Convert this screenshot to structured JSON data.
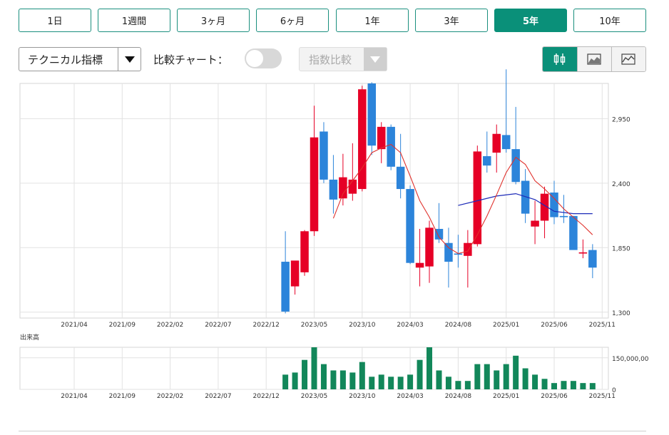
{
  "period_buttons": [
    {
      "label": "1日",
      "active": false
    },
    {
      "label": "1週間",
      "active": false
    },
    {
      "label": "3ヶ月",
      "active": false
    },
    {
      "label": "6ヶ月",
      "active": false
    },
    {
      "label": "1年",
      "active": false
    },
    {
      "label": "3年",
      "active": false
    },
    {
      "label": "5年",
      "active": true
    },
    {
      "label": "10年",
      "active": false
    }
  ],
  "toolbar": {
    "technical_label": "テクニカル指標",
    "compare_label": "比較チャート：",
    "compare_enabled": false,
    "index_compare_label": "指数比較"
  },
  "chart_types": [
    {
      "icon": "candlestick-icon",
      "active": true
    },
    {
      "icon": "area-chart-icon",
      "active": false
    },
    {
      "icon": "line-chart-icon",
      "active": false
    }
  ],
  "colors": {
    "accent": "#0a9079",
    "up_candle": "#e60026",
    "down_candle": "#2c84da",
    "ma_short": "#e0322d",
    "ma_long": "#1c2ab8",
    "volume": "#12875a"
  },
  "volume_label": "出来高",
  "chart_data": {
    "type": "candlestick",
    "interval": "monthly",
    "x_tick_labels": [
      "2021/04",
      "2021/09",
      "2022/02",
      "2022/07",
      "2022/12",
      "2023/05",
      "2023/10",
      "2024/03",
      "2024/08",
      "2025/01",
      "2025/06",
      "2025/11"
    ],
    "y_tick_labels": [
      "2,950",
      "2,400",
      "1,850",
      "1,300"
    ],
    "ylim": [
      1250,
      3250
    ],
    "grid": true,
    "candles": [
      {
        "month": "2023/02",
        "open": 1730,
        "high": 1990,
        "low": 1290,
        "close": 1305
      },
      {
        "month": "2023/03",
        "open": 1520,
        "high": 1730,
        "low": 1450,
        "close": 1740
      },
      {
        "month": "2023/04",
        "open": 1640,
        "high": 2000,
        "low": 1610,
        "close": 1990
      },
      {
        "month": "2023/05",
        "open": 1990,
        "high": 3060,
        "low": 1950,
        "close": 2790
      },
      {
        "month": "2023/06",
        "open": 2840,
        "high": 2920,
        "low": 2400,
        "close": 2430
      },
      {
        "month": "2023/07",
        "open": 2430,
        "high": 2640,
        "low": 2140,
        "close": 2260
      },
      {
        "month": "2023/08",
        "open": 2270,
        "high": 2650,
        "low": 2210,
        "close": 2450
      },
      {
        "month": "2023/09",
        "open": 2310,
        "high": 2740,
        "low": 2250,
        "close": 2430
      },
      {
        "month": "2023/10",
        "open": 2350,
        "high": 3230,
        "low": 2330,
        "close": 3200
      },
      {
        "month": "2023/11",
        "open": 3250,
        "high": 3260,
        "low": 2640,
        "close": 2720
      },
      {
        "month": "2023/12",
        "open": 2690,
        "high": 2920,
        "low": 2570,
        "close": 2880
      },
      {
        "month": "2024/01",
        "open": 2880,
        "high": 2900,
        "low": 2510,
        "close": 2540
      },
      {
        "month": "2024/02",
        "open": 2540,
        "high": 2820,
        "low": 2270,
        "close": 2350
      },
      {
        "month": "2024/03",
        "open": 2350,
        "high": 2380,
        "low": 1710,
        "close": 1720
      },
      {
        "month": "2024/04",
        "open": 1680,
        "high": 2010,
        "low": 1520,
        "close": 1720
      },
      {
        "month": "2024/05",
        "open": 1690,
        "high": 2080,
        "low": 1550,
        "close": 2020
      },
      {
        "month": "2024/06",
        "open": 2010,
        "high": 2230,
        "low": 1890,
        "close": 1920
      },
      {
        "month": "2024/07",
        "open": 1890,
        "high": 2020,
        "low": 1510,
        "close": 1730
      },
      {
        "month": "2024/08",
        "open": 1800,
        "high": 1960,
        "low": 1680,
        "close": 1790
      },
      {
        "month": "2024/09",
        "open": 1780,
        "high": 2000,
        "low": 1510,
        "close": 1890
      },
      {
        "month": "2024/10",
        "open": 1880,
        "high": 2720,
        "low": 1860,
        "close": 2670
      },
      {
        "month": "2024/11",
        "open": 2630,
        "high": 2840,
        "low": 2490,
        "close": 2550
      },
      {
        "month": "2024/12",
        "open": 2660,
        "high": 2900,
        "low": 2490,
        "close": 2820
      },
      {
        "month": "2025/01",
        "open": 2810,
        "high": 3370,
        "low": 2660,
        "close": 2690
      },
      {
        "month": "2025/02",
        "open": 2690,
        "high": 3050,
        "low": 2390,
        "close": 2410
      },
      {
        "month": "2025/03",
        "open": 2420,
        "high": 2520,
        "low": 2060,
        "close": 2140
      },
      {
        "month": "2025/04",
        "open": 2030,
        "high": 2250,
        "low": 1880,
        "close": 2080
      },
      {
        "month": "2025/05",
        "open": 2080,
        "high": 2370,
        "low": 1930,
        "close": 2310
      },
      {
        "month": "2025/06",
        "open": 2320,
        "high": 2420,
        "low": 2050,
        "close": 2110
      },
      {
        "month": "2025/07",
        "open": 2120,
        "high": 2300,
        "low": 2060,
        "close": 2110
      },
      {
        "month": "2025/08",
        "open": 2120,
        "high": 2120,
        "low": 1840,
        "close": 1830
      },
      {
        "month": "2025/09",
        "open": 1800,
        "high": 1920,
        "low": 1760,
        "close": 1810
      },
      {
        "month": "2025/10",
        "open": 1830,
        "high": 1880,
        "low": 1590,
        "close": 1680
      }
    ],
    "ma_short": [
      {
        "month": "2023/07",
        "value": 2100
      },
      {
        "month": "2023/08",
        "value": 2310
      },
      {
        "month": "2023/09",
        "value": 2420
      },
      {
        "month": "2023/10",
        "value": 2530
      },
      {
        "month": "2023/11",
        "value": 2660
      },
      {
        "month": "2023/12",
        "value": 2700
      },
      {
        "month": "2024/01",
        "value": 2730
      },
      {
        "month": "2024/02",
        "value": 2660
      },
      {
        "month": "2024/03",
        "value": 2460
      },
      {
        "month": "2024/04",
        "value": 2250
      },
      {
        "month": "2024/05",
        "value": 2110
      },
      {
        "month": "2024/06",
        "value": 1940
      },
      {
        "month": "2024/07",
        "value": 1850
      },
      {
        "month": "2024/08",
        "value": 1800
      },
      {
        "month": "2024/09",
        "value": 1820
      },
      {
        "month": "2024/10",
        "value": 1960
      },
      {
        "month": "2024/11",
        "value": 2120
      },
      {
        "month": "2024/12",
        "value": 2300
      },
      {
        "month": "2025/01",
        "value": 2490
      },
      {
        "month": "2025/02",
        "value": 2620
      },
      {
        "month": "2025/03",
        "value": 2560
      },
      {
        "month": "2025/04",
        "value": 2420
      },
      {
        "month": "2025/05",
        "value": 2350
      },
      {
        "month": "2025/06",
        "value": 2270
      },
      {
        "month": "2025/07",
        "value": 2180
      },
      {
        "month": "2025/08",
        "value": 2110
      },
      {
        "month": "2025/09",
        "value": 2040
      },
      {
        "month": "2025/10",
        "value": 1960
      }
    ],
    "ma_long": [
      {
        "month": "2024/08",
        "value": 2210
      },
      {
        "month": "2024/10",
        "value": 2250
      },
      {
        "month": "2024/12",
        "value": 2290
      },
      {
        "month": "2025/02",
        "value": 2310
      },
      {
        "month": "2025/04",
        "value": 2260
      },
      {
        "month": "2025/06",
        "value": 2160
      },
      {
        "month": "2025/08",
        "value": 2140
      },
      {
        "month": "2025/10",
        "value": 2140
      }
    ],
    "volume": {
      "y_tick_labels": [
        "150,000,00",
        "0"
      ],
      "ylim": [
        0,
        200000000
      ],
      "values": [
        70000000,
        80000000,
        140000000,
        200000000,
        120000000,
        90000000,
        90000000,
        80000000,
        130000000,
        60000000,
        70000000,
        60000000,
        60000000,
        70000000,
        140000000,
        200000000,
        90000000,
        60000000,
        40000000,
        40000000,
        120000000,
        120000000,
        90000000,
        120000000,
        160000000,
        100000000,
        70000000,
        50000000,
        30000000,
        40000000,
        40000000,
        30000000,
        30000000
      ]
    }
  }
}
